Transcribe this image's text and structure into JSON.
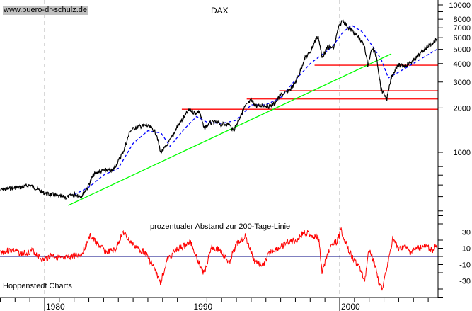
{
  "chart_data": {
    "type": "line",
    "title": "DAX",
    "watermark": "www.buero-dr-schulz.de",
    "source": "Hoppenstedt Charts",
    "x_ticks": [
      "1980",
      "1990",
      "2000"
    ],
    "xlim": [
      1977,
      2006.6
    ],
    "upper_panel": {
      "scale": "log",
      "ylim": [
        390,
        11500
      ],
      "y_ticks": [
        "10000",
        "8000",
        "7000",
        "6000",
        "5000",
        "4000",
        "3000",
        "2000",
        "1000"
      ],
      "y_tick_values": [
        10000,
        8000,
        7000,
        6000,
        5000,
        4000,
        3000,
        2000,
        1000
      ],
      "price_series": {
        "color": "#000000",
        "x": [
          1977.0,
          1977.5,
          1978.0,
          1978.5,
          1979.0,
          1979.4,
          1979.8,
          1980.2,
          1980.6,
          1981.0,
          1981.5,
          1982.0,
          1982.5,
          1982.9,
          1983.3,
          1983.7,
          1984.2,
          1984.6,
          1985.0,
          1985.4,
          1985.8,
          1986.2,
          1986.5,
          1986.9,
          1987.3,
          1987.6,
          1987.85,
          1988.2,
          1988.6,
          1989.0,
          1989.4,
          1989.8,
          1990.2,
          1990.5,
          1990.8,
          1991.2,
          1991.6,
          1992.0,
          1992.5,
          1992.8,
          1993.2,
          1993.6,
          1994.0,
          1994.4,
          1994.8,
          1995.2,
          1995.6,
          1996.0,
          1996.5,
          1996.9,
          1997.3,
          1997.6,
          1998.0,
          1998.4,
          1998.55,
          1998.8,
          1999.2,
          1999.6,
          1999.9,
          2000.2,
          2000.6,
          2000.9,
          2001.3,
          2001.7,
          2001.9,
          2002.2,
          2002.5,
          2002.8,
          2003.2,
          2003.5,
          2003.9,
          2004.3,
          2004.7,
          2005.0,
          2005.5,
          2005.9,
          2006.3,
          2006.6
        ],
        "y": [
          556,
          565,
          575,
          580,
          600,
          570,
          540,
          520,
          515,
          500,
          495,
          520,
          505,
          575,
          700,
          740,
          760,
          750,
          870,
          1050,
          1400,
          1480,
          1500,
          1520,
          1450,
          1320,
          1000,
          1080,
          1250,
          1500,
          1700,
          1950,
          1850,
          1900,
          1450,
          1580,
          1600,
          1550,
          1550,
          1400,
          1700,
          2050,
          2250,
          2050,
          2100,
          2050,
          2150,
          2450,
          2580,
          2850,
          3500,
          4300,
          4800,
          5900,
          6100,
          4400,
          5200,
          5100,
          6900,
          7900,
          7000,
          6600,
          6000,
          5200,
          3900,
          5100,
          4500,
          2700,
          2300,
          3200,
          3900,
          3850,
          4000,
          4200,
          4700,
          5200,
          5500,
          5900
        ]
      },
      "moving_average_200": {
        "color": "#0000ff",
        "x": [
          1982.0,
          1983.0,
          1984.0,
          1985.0,
          1986.0,
          1987.0,
          1987.9,
          1988.5,
          1989.5,
          1990.3,
          1991.0,
          1992.0,
          1993.0,
          1994.0,
          1995.0,
          1996.0,
          1997.0,
          1998.0,
          1998.8,
          1999.5,
          2000.2,
          2000.8,
          2001.5,
          2002.2,
          2002.8,
          2003.3,
          2004.0,
          2004.8,
          2005.5,
          2006.6
        ],
        "y": [
          515,
          580,
          700,
          780,
          1150,
          1400,
          1350,
          1100,
          1450,
          1750,
          1600,
          1570,
          1650,
          2100,
          2100,
          2350,
          3100,
          4000,
          4600,
          5200,
          6500,
          7300,
          6600,
          5300,
          4300,
          3200,
          3500,
          3900,
          4300,
          5000
        ]
      },
      "trend_line": {
        "color": "#00ff00",
        "x": [
          1981.6,
          2003.5
        ],
        "y": [
          436,
          4660
        ]
      },
      "horizontal_lines": [
        {
          "color": "#ff0000",
          "value": 3900,
          "from": 1998.3
        },
        {
          "color": "#ff0000",
          "value": 2620,
          "from": 1995.9
        },
        {
          "color": "#ff0000",
          "value": 2300,
          "from": 1993.7
        },
        {
          "color": "#ff0000",
          "value": 1960,
          "from": 1989.3
        }
      ]
    },
    "lower_panel": {
      "label": "prozentualer Abstand zur 200-Tage-Linie",
      "ylim": [
        -50,
        50
      ],
      "y_ticks": [
        "30",
        "10",
        "-10",
        "-30"
      ],
      "y_tick_values": [
        30,
        10,
        -10,
        -30
      ],
      "zero_line_color": "#000080",
      "series": {
        "color": "#ff0000",
        "x": [
          1977.0,
          1977.8,
          1978.5,
          1979.2,
          1979.9,
          1980.5,
          1981.2,
          1981.8,
          1982.5,
          1983.1,
          1983.6,
          1984.2,
          1984.8,
          1985.3,
          1985.8,
          1986.3,
          1986.8,
          1987.3,
          1987.85,
          1988.3,
          1988.9,
          1989.4,
          1989.9,
          1990.4,
          1990.8,
          1991.3,
          1991.9,
          1992.5,
          1993.0,
          1993.6,
          1994.2,
          1994.8,
          1995.3,
          1995.9,
          1996.5,
          1997.1,
          1997.6,
          1998.2,
          1998.6,
          1998.8,
          1999.3,
          1999.8,
          2000.1,
          2000.6,
          2001.0,
          2001.4,
          2001.7,
          2002.0,
          2002.4,
          2002.7,
          2002.9,
          2003.2,
          2003.6,
          2004.0,
          2004.4,
          2004.8,
          2005.3,
          2005.8,
          2006.3,
          2006.6
        ],
        "y": [
          5,
          8,
          3,
          7,
          -5,
          2,
          -4,
          0,
          3,
          25,
          15,
          5,
          8,
          30,
          18,
          10,
          5,
          -10,
          -32,
          -5,
          8,
          12,
          18,
          -5,
          -22,
          12,
          8,
          -8,
          15,
          25,
          -5,
          -12,
          6,
          10,
          18,
          20,
          30,
          25,
          22,
          -20,
          10,
          18,
          32,
          8,
          -5,
          -15,
          -30,
          10,
          -10,
          -35,
          -40,
          -15,
          22,
          8,
          12,
          5,
          10,
          12,
          8,
          15
        ]
      }
    }
  }
}
